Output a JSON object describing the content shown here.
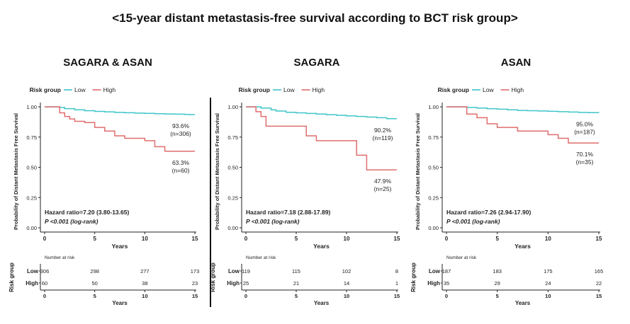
{
  "title": "<15-year distant metastasis-free survival according to BCT risk group>",
  "colors": {
    "low": "#3fc5c9",
    "high": "#e06d6d",
    "axis": "#222222"
  },
  "chart_data": [
    {
      "type": "line",
      "title": "SAGARA & ASAN",
      "xlabel": "Years",
      "ylabel": "Probability of Distant Metastasis Free Survival",
      "xlim": [
        0,
        15
      ],
      "ylim": [
        0,
        1
      ],
      "xticks": [
        "0",
        "5",
        "10",
        "15"
      ],
      "yticks": [
        "0.00",
        "0.25",
        "0.50",
        "0.75",
        "1.00"
      ],
      "legend_title": "Risk group",
      "grid": false,
      "legend_position": "top",
      "series": [
        {
          "name": "Low",
          "color": "#3fc5c9",
          "x": [
            0,
            1.5,
            2,
            3,
            4,
            5,
            6,
            7,
            8,
            9,
            10,
            11,
            12,
            13,
            14,
            14.5,
            15
          ],
          "y": [
            1.0,
            0.995,
            0.985,
            0.975,
            0.968,
            0.962,
            0.958,
            0.954,
            0.951,
            0.948,
            0.946,
            0.943,
            0.941,
            0.939,
            0.937,
            0.936,
            0.936
          ],
          "end_label": "93.6%",
          "end_n": "(n=306)"
        },
        {
          "name": "High",
          "color": "#e06d6d",
          "x": [
            0,
            1.5,
            2,
            2.5,
            3,
            4,
            5,
            6,
            7,
            8,
            9,
            10,
            11,
            12,
            15
          ],
          "y": [
            1.0,
            0.95,
            0.92,
            0.9,
            0.88,
            0.87,
            0.83,
            0.8,
            0.76,
            0.74,
            0.74,
            0.72,
            0.67,
            0.633,
            0.633
          ],
          "end_label": "63.3%",
          "end_n": "(n=60)"
        }
      ],
      "hazard_ratio": "Hazard ratio=7.20 (3.80-13.65)",
      "p_value": "P <0.001 (log-rank)",
      "risk_table": {
        "title": "Number at risk",
        "ylabel": "Risk group",
        "rows": [
          {
            "group": "Low",
            "counts": [
              "306",
              "298",
              "277",
              "173"
            ]
          },
          {
            "group": "High",
            "counts": [
              "60",
              "50",
              "38",
              "23"
            ]
          }
        ],
        "xlabel": "Years"
      }
    },
    {
      "type": "line",
      "title": "SAGARA",
      "xlabel": "Years",
      "ylabel": "Probability of Distant Metastasis Free Survival",
      "xlim": [
        0,
        15
      ],
      "ylim": [
        0,
        1
      ],
      "xticks": [
        "0",
        "5",
        "10",
        "15"
      ],
      "yticks": [
        "0.00",
        "0.25",
        "0.50",
        "0.75",
        "1.00"
      ],
      "legend_title": "Risk group",
      "grid": false,
      "legend_position": "top",
      "series": [
        {
          "name": "Low",
          "color": "#3fc5c9",
          "x": [
            0,
            1.5,
            2.5,
            3,
            4,
            5,
            6,
            7,
            8,
            9,
            10,
            11,
            12,
            13,
            14,
            15
          ],
          "y": [
            1.0,
            0.99,
            0.975,
            0.965,
            0.955,
            0.95,
            0.945,
            0.94,
            0.935,
            0.93,
            0.925,
            0.92,
            0.915,
            0.91,
            0.902,
            0.902
          ],
          "end_label": "90.2%",
          "end_n": "(n=119)"
        },
        {
          "name": "High",
          "color": "#e06d6d",
          "x": [
            0,
            1,
            1.5,
            2,
            6,
            7,
            8,
            11,
            12,
            15
          ],
          "y": [
            1.0,
            0.96,
            0.92,
            0.84,
            0.76,
            0.72,
            0.72,
            0.6,
            0.479,
            0.479
          ],
          "end_label": "47.9%",
          "end_n": "(n=25)"
        }
      ],
      "hazard_ratio": "Hazard ratio=7.18 (2.88-17.89)",
      "p_value": "P <0.001 (log-rank)",
      "risk_table": {
        "title": "Number at risk",
        "ylabel": "Risk group",
        "rows": [
          {
            "group": "Low",
            "counts": [
              "119",
              "115",
              "102",
              "8"
            ]
          },
          {
            "group": "High",
            "counts": [
              "25",
              "21",
              "14",
              "1"
            ]
          }
        ],
        "xlabel": "Years"
      }
    },
    {
      "type": "line",
      "title": "ASAN",
      "xlabel": "Years",
      "ylabel": "Probability of Distant Metastasis Free Survival",
      "xlim": [
        0,
        15
      ],
      "ylim": [
        0,
        1
      ],
      "xticks": [
        "0",
        "5",
        "10",
        "15"
      ],
      "yticks": [
        "0.00",
        "0.25",
        "0.50",
        "0.75",
        "1.00"
      ],
      "legend_title": "Risk group",
      "grid": false,
      "legend_position": "top",
      "series": [
        {
          "name": "Low",
          "color": "#3fc5c9",
          "x": [
            0,
            2,
            3,
            4,
            5,
            6,
            7,
            8,
            9,
            10,
            11,
            12,
            13,
            14,
            15
          ],
          "y": [
            1.0,
            0.995,
            0.99,
            0.985,
            0.98,
            0.975,
            0.97,
            0.968,
            0.966,
            0.963,
            0.96,
            0.957,
            0.954,
            0.952,
            0.95
          ],
          "end_label": "95.0%",
          "end_n": "(n=187)"
        },
        {
          "name": "High",
          "color": "#e06d6d",
          "x": [
            0,
            2,
            3,
            4,
            5,
            6,
            7,
            8,
            10,
            11,
            12,
            15
          ],
          "y": [
            1.0,
            0.94,
            0.91,
            0.86,
            0.83,
            0.83,
            0.8,
            0.8,
            0.77,
            0.74,
            0.701,
            0.701
          ],
          "end_label": "70.1%",
          "end_n": "(n=35)"
        }
      ],
      "hazard_ratio": "Hazard ratio=7.26 (2.94-17.90)",
      "p_value": "P <0.001 (log-rank)",
      "risk_table": {
        "title": "Number at risk",
        "ylabel": "Risk group",
        "rows": [
          {
            "group": "Low",
            "counts": [
              "187",
              "183",
              "175",
              "165"
            ]
          },
          {
            "group": "High",
            "counts": [
              "35",
              "29",
              "24",
              "22"
            ]
          }
        ],
        "xlabel": "Years"
      }
    }
  ]
}
